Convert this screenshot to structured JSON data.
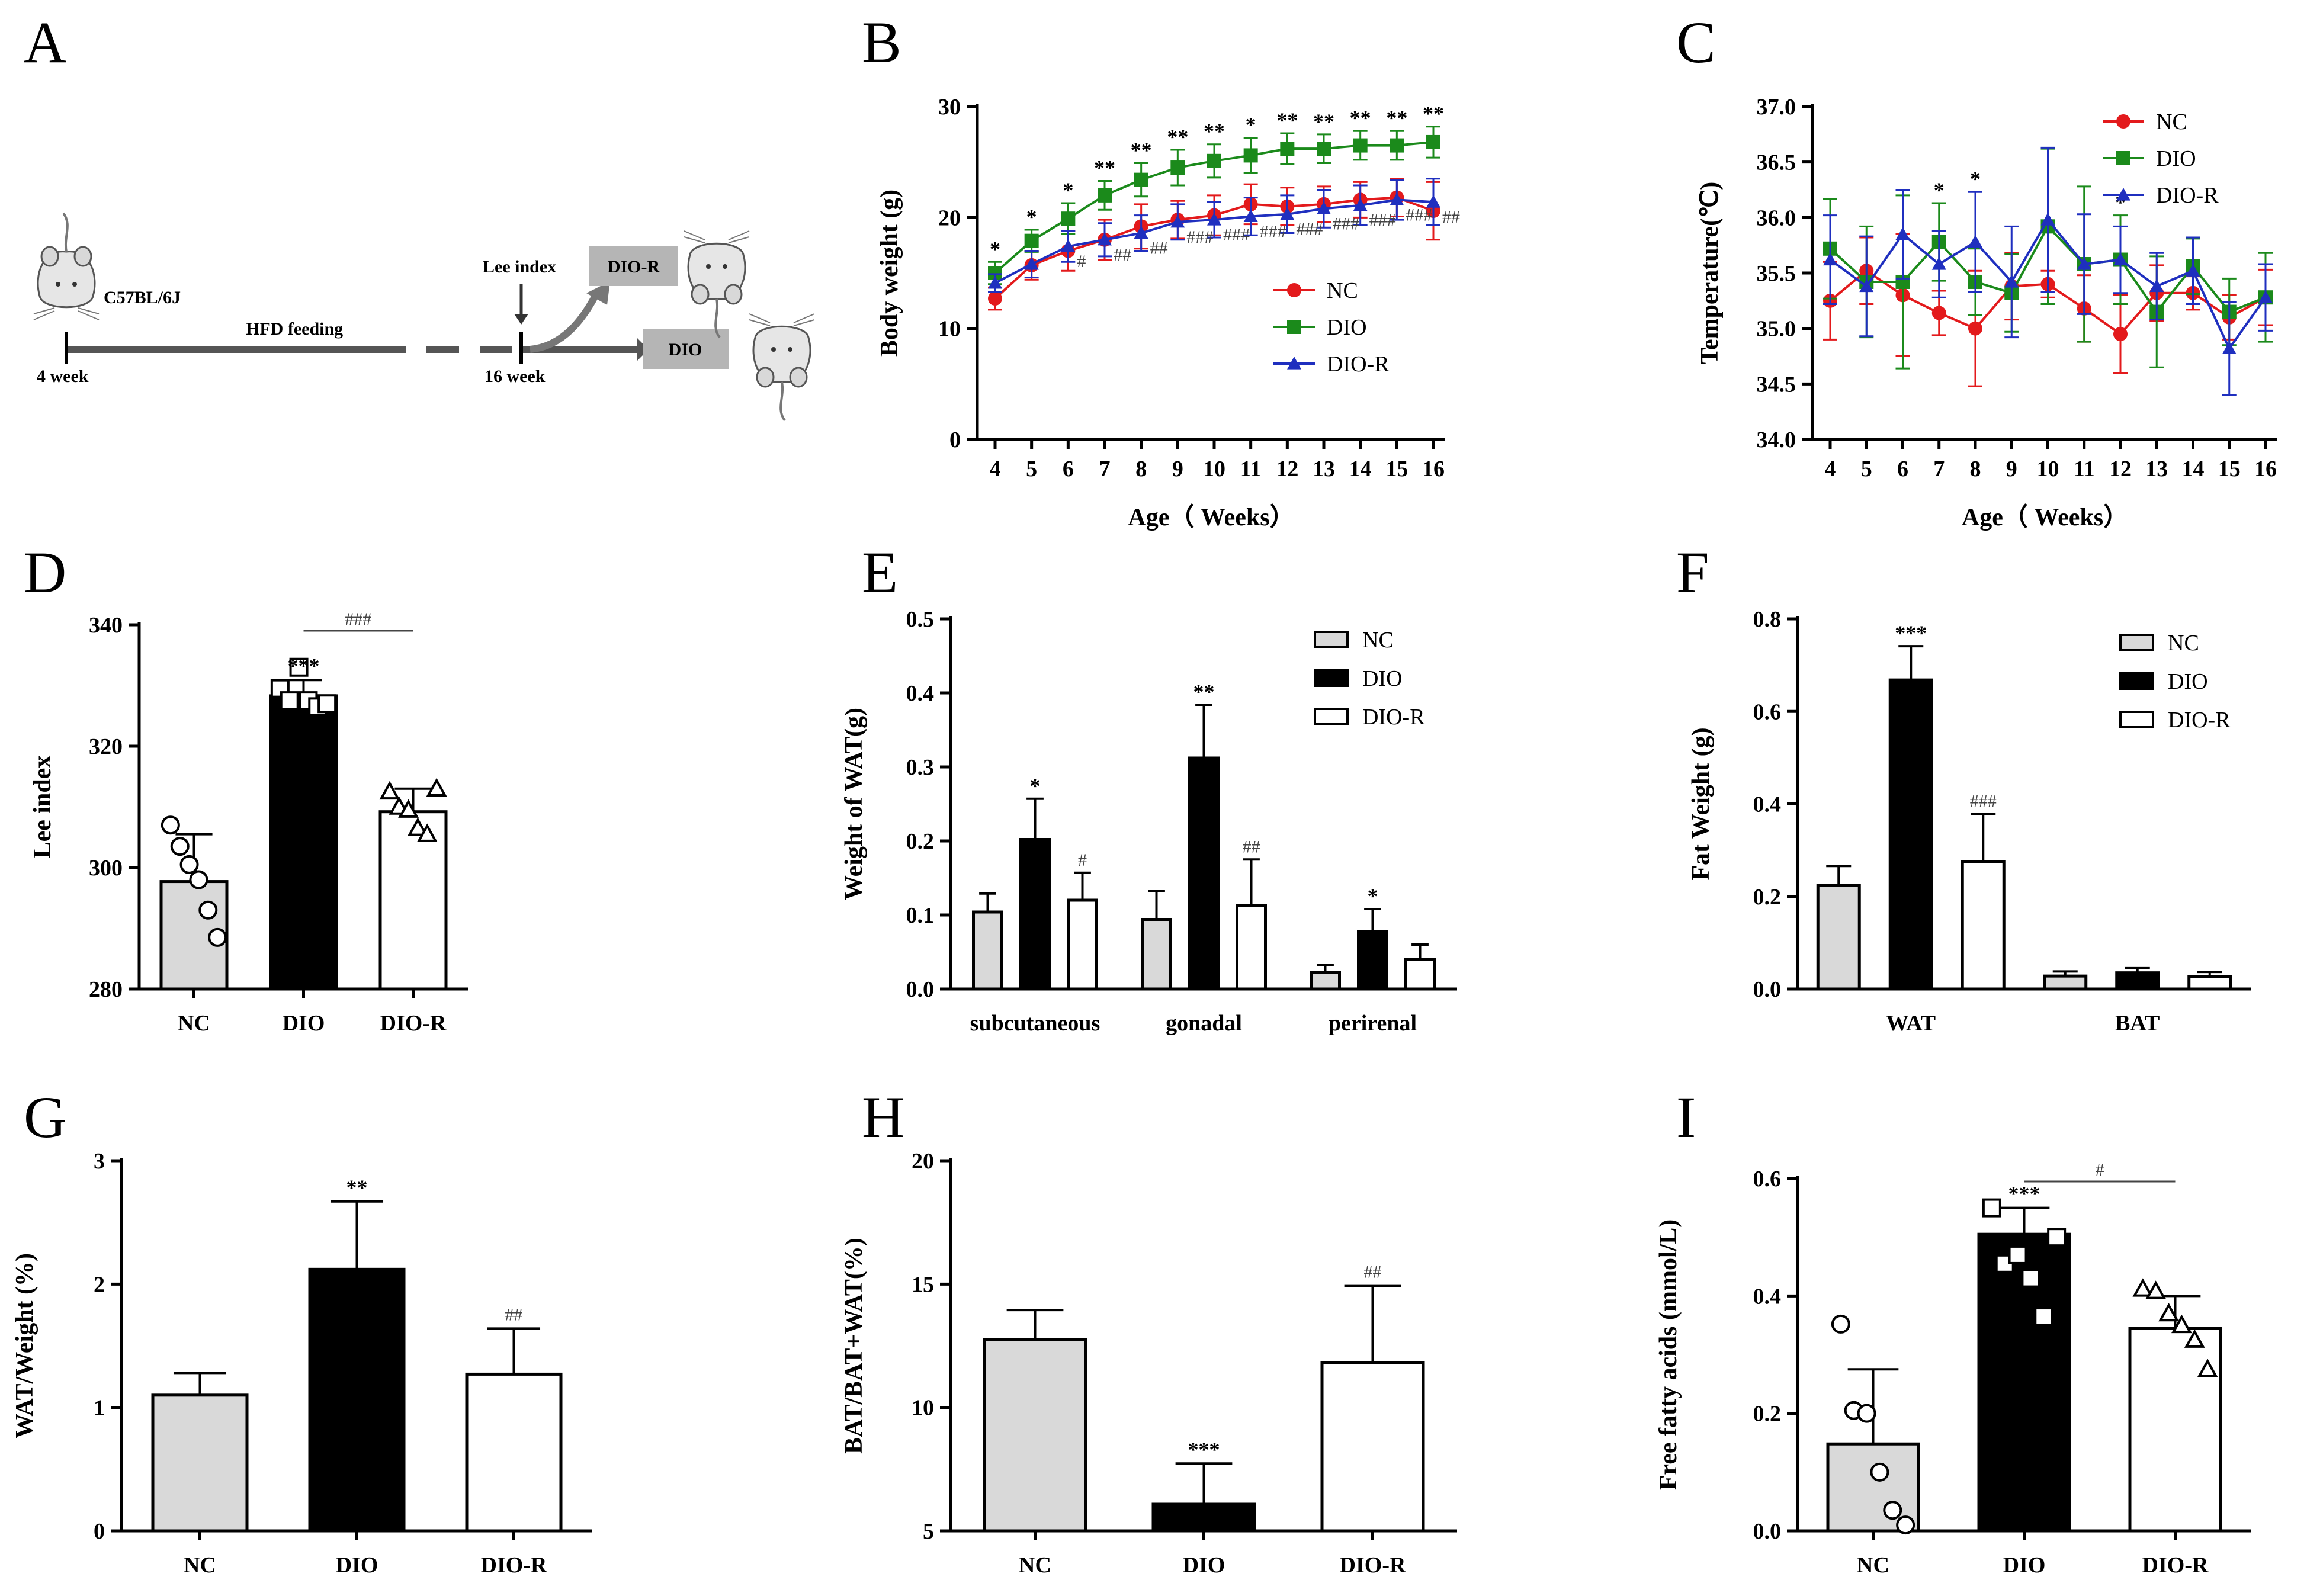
{
  "colors": {
    "nc": "#d9d9d9",
    "dio": "#000000",
    "dior": "#ffffff",
    "line_nc": "#e31a1c",
    "line_dio": "#1b8a1b",
    "line_dior": "#1f2fbf",
    "hash": "#444444",
    "axis": "#000000"
  },
  "panel_labels": [
    "A",
    "B",
    "C",
    "D",
    "E",
    "F",
    "G",
    "H",
    "I"
  ],
  "scheme": {
    "strain": "C57BL/6J",
    "feeding": "HFD feeding",
    "start": "4 week",
    "end": "16 week",
    "lee": "Lee index",
    "box_dior": "DIO-R",
    "box_dio": "DIO"
  },
  "chart_data": [
    {
      "id": "B",
      "type": "line",
      "xlabel": "Age（ Weeks）",
      "ylabel": "Body weight (g)",
      "x": [
        4,
        5,
        6,
        7,
        8,
        9,
        10,
        11,
        12,
        13,
        14,
        15,
        16
      ],
      "ylim": [
        0,
        30
      ],
      "yticks": [
        0,
        10,
        20,
        30
      ],
      "legend": "right",
      "series": [
        {
          "name": "NC",
          "values": [
            12.7,
            15.7,
            17.0,
            18.0,
            19.2,
            19.8,
            20.2,
            21.2,
            21.0,
            21.2,
            21.6,
            21.8,
            20.6
          ],
          "err": [
            1.0,
            1.3,
            1.8,
            1.8,
            2.0,
            1.7,
            1.8,
            1.8,
            1.7,
            1.6,
            1.6,
            1.7,
            2.6
          ]
        },
        {
          "name": "DIO",
          "values": [
            15.0,
            17.9,
            19.9,
            22.0,
            23.4,
            24.5,
            25.1,
            25.6,
            26.2,
            26.2,
            26.5,
            26.5,
            26.8
          ],
          "err": [
            1.0,
            1.0,
            1.4,
            1.3,
            1.5,
            1.6,
            1.5,
            1.6,
            1.4,
            1.3,
            1.3,
            1.3,
            1.4
          ]
        },
        {
          "name": "DIO-R",
          "values": [
            14.1,
            15.8,
            17.4,
            18.0,
            18.6,
            19.6,
            19.8,
            20.1,
            20.3,
            20.8,
            21.1,
            21.6,
            21.4
          ],
          "err": [
            0.8,
            1.2,
            1.4,
            1.5,
            1.6,
            1.6,
            1.6,
            1.7,
            1.7,
            1.7,
            1.8,
            1.8,
            2.1
          ]
        }
      ],
      "stars": [
        "*",
        "*",
        "*",
        "**",
        "**",
        "**",
        "**",
        "*",
        "**",
        "**",
        "**",
        "**",
        "**"
      ],
      "hashes": [
        "",
        "",
        "#",
        "##",
        "##",
        "###",
        "###",
        "###",
        "###",
        "###",
        "###",
        "###",
        "##"
      ]
    },
    {
      "id": "C",
      "type": "line",
      "xlabel": "Age（ Weeks）",
      "ylabel": "Temperature(℃)",
      "x": [
        4,
        5,
        6,
        7,
        8,
        9,
        10,
        11,
        12,
        13,
        14,
        15,
        16
      ],
      "ylim": [
        34.0,
        37.0
      ],
      "yticks": [
        "34.0",
        "34.5",
        "35.0",
        "35.5",
        "36.0",
        "36.5",
        "37.0"
      ],
      "legend": "top-right",
      "series": [
        {
          "name": "NC",
          "values": [
            35.25,
            35.52,
            35.3,
            35.14,
            35.0,
            35.38,
            35.4,
            35.18,
            34.95,
            35.32,
            35.32,
            35.1,
            35.28
          ],
          "err": [
            0.35,
            0.3,
            0.55,
            0.2,
            0.52,
            0.3,
            0.12,
            0.3,
            0.35,
            0.25,
            0.15,
            0.2,
            0.25
          ]
        },
        {
          "name": "DIO",
          "values": [
            35.72,
            35.42,
            35.42,
            35.78,
            35.42,
            35.32,
            35.92,
            35.58,
            35.62,
            35.15,
            35.56,
            35.15,
            35.28
          ],
          "err": [
            0.45,
            0.5,
            0.78,
            0.35,
            0.3,
            0.35,
            0.7,
            0.7,
            0.4,
            0.5,
            0.25,
            0.3,
            0.4
          ]
        },
        {
          "name": "DIO-R",
          "values": [
            35.62,
            35.38,
            35.85,
            35.58,
            35.78,
            35.42,
            35.98,
            35.58,
            35.62,
            35.38,
            35.52,
            34.82,
            35.28
          ],
          "err": [
            0.4,
            0.45,
            0.4,
            0.3,
            0.45,
            0.5,
            0.65,
            0.45,
            0.3,
            0.3,
            0.3,
            0.42,
            0.3
          ]
        }
      ],
      "stars": [
        "",
        "",
        "",
        "*",
        "*",
        "",
        "",
        "",
        "*",
        "",
        "",
        "",
        ""
      ]
    },
    {
      "id": "D",
      "type": "bar",
      "categories": [
        "NC",
        "DIO",
        "DIO-R"
      ],
      "ylabel": "Lee index",
      "values": [
        297.7,
        328.3,
        309.2
      ],
      "err": [
        7.8,
        2.6,
        3.8
      ],
      "ylim": [
        280,
        340
      ],
      "yticks": [
        280,
        300,
        320,
        340
      ],
      "points": [
        [
          307,
          303.5,
          300.5,
          298,
          293,
          288.5
        ],
        [
          329.5,
          327.5,
          333,
          327.5,
          326.5,
          327
        ],
        [
          312.5,
          310,
          309.5,
          306.5,
          305.5,
          313
        ]
      ],
      "markers": [
        "circle",
        "square",
        "triangle"
      ],
      "stars": [
        "",
        "***",
        ""
      ],
      "bracket": "###"
    },
    {
      "id": "E",
      "type": "bar",
      "categories": [
        "subcutaneous",
        "gonadal",
        "perirenal"
      ],
      "ylabel": "Weight of WAT(g)",
      "ylim": [
        0,
        0.5
      ],
      "yticks": [
        "0.0",
        "0.1",
        "0.2",
        "0.3",
        "0.4",
        "0.5"
      ],
      "legend": "top-right",
      "series": [
        {
          "name": "NC",
          "values": [
            0.104,
            0.094,
            0.022
          ],
          "err": [
            0.025,
            0.038,
            0.01
          ]
        },
        {
          "name": "DIO",
          "values": [
            0.202,
            0.312,
            0.078
          ],
          "err": [
            0.055,
            0.072,
            0.03
          ]
        },
        {
          "name": "DIO-R",
          "values": [
            0.12,
            0.113,
            0.04
          ],
          "err": [
            0.037,
            0.062,
            0.02
          ]
        }
      ],
      "stars": [
        "*",
        "**",
        "*"
      ],
      "hashes": [
        "#",
        "##",
        ""
      ]
    },
    {
      "id": "F",
      "type": "bar",
      "categories": [
        "WAT",
        "BAT"
      ],
      "ylabel": "Fat Weight (g)",
      "ylim": [
        0,
        0.8
      ],
      "yticks": [
        "0.0",
        "0.2",
        "0.4",
        "0.6",
        "0.8"
      ],
      "legend": "top-right",
      "series": [
        {
          "name": "NC",
          "values": [
            0.224,
            0.028
          ],
          "err": [
            0.042,
            0.01
          ]
        },
        {
          "name": "DIO",
          "values": [
            0.668,
            0.035
          ],
          "err": [
            0.073,
            0.01
          ]
        },
        {
          "name": "DIO-R",
          "values": [
            0.275,
            0.027
          ],
          "err": [
            0.103,
            0.01
          ]
        }
      ],
      "stars": [
        "***",
        ""
      ],
      "hashes": [
        "###",
        ""
      ]
    },
    {
      "id": "G",
      "type": "bar",
      "categories": [
        "NC",
        "DIO",
        "DIO-R"
      ],
      "ylabel": "WAT/Weight (%)",
      "values": [
        1.1,
        2.12,
        1.27
      ],
      "err": [
        0.18,
        0.55,
        0.37
      ],
      "ylim": [
        0,
        3
      ],
      "yticks": [
        0,
        1,
        2,
        3
      ],
      "stars": [
        "",
        "**",
        ""
      ],
      "hashes": [
        "",
        "",
        "##"
      ]
    },
    {
      "id": "H",
      "type": "bar",
      "categories": [
        "NC",
        "DIO",
        "DIO-R"
      ],
      "ylabel": "BAT/BAT+WAT(%)",
      "values": [
        12.75,
        6.08,
        11.82
      ],
      "err": [
        1.2,
        1.65,
        3.1
      ],
      "ylim": [
        5,
        20
      ],
      "yticks": [
        5,
        10,
        15,
        20
      ],
      "stars": [
        "",
        "***",
        ""
      ],
      "hashes": [
        "",
        "",
        "##"
      ]
    },
    {
      "id": "I",
      "type": "bar",
      "categories": [
        "NC",
        "DIO",
        "DIO-R"
      ],
      "ylabel": "Free fatty acids (mmol/L)",
      "values": [
        0.148,
        0.505,
        0.345
      ],
      "err": [
        0.127,
        0.045,
        0.055
      ],
      "ylim": [
        0,
        0.6
      ],
      "yticks": [
        "0.0",
        "0.2",
        "0.4",
        "0.6"
      ],
      "points": [
        [
          0.352,
          0.205,
          0.2,
          0.1,
          0.035,
          0.01
        ],
        [
          0.55,
          0.455,
          0.47,
          0.43,
          0.365,
          0.5
        ],
        [
          0.412,
          0.408,
          0.37,
          0.35,
          0.325,
          0.275
        ]
      ],
      "markers": [
        "circle",
        "square",
        "triangle"
      ],
      "stars": [
        "",
        "***",
        ""
      ],
      "bracket": "#"
    }
  ]
}
